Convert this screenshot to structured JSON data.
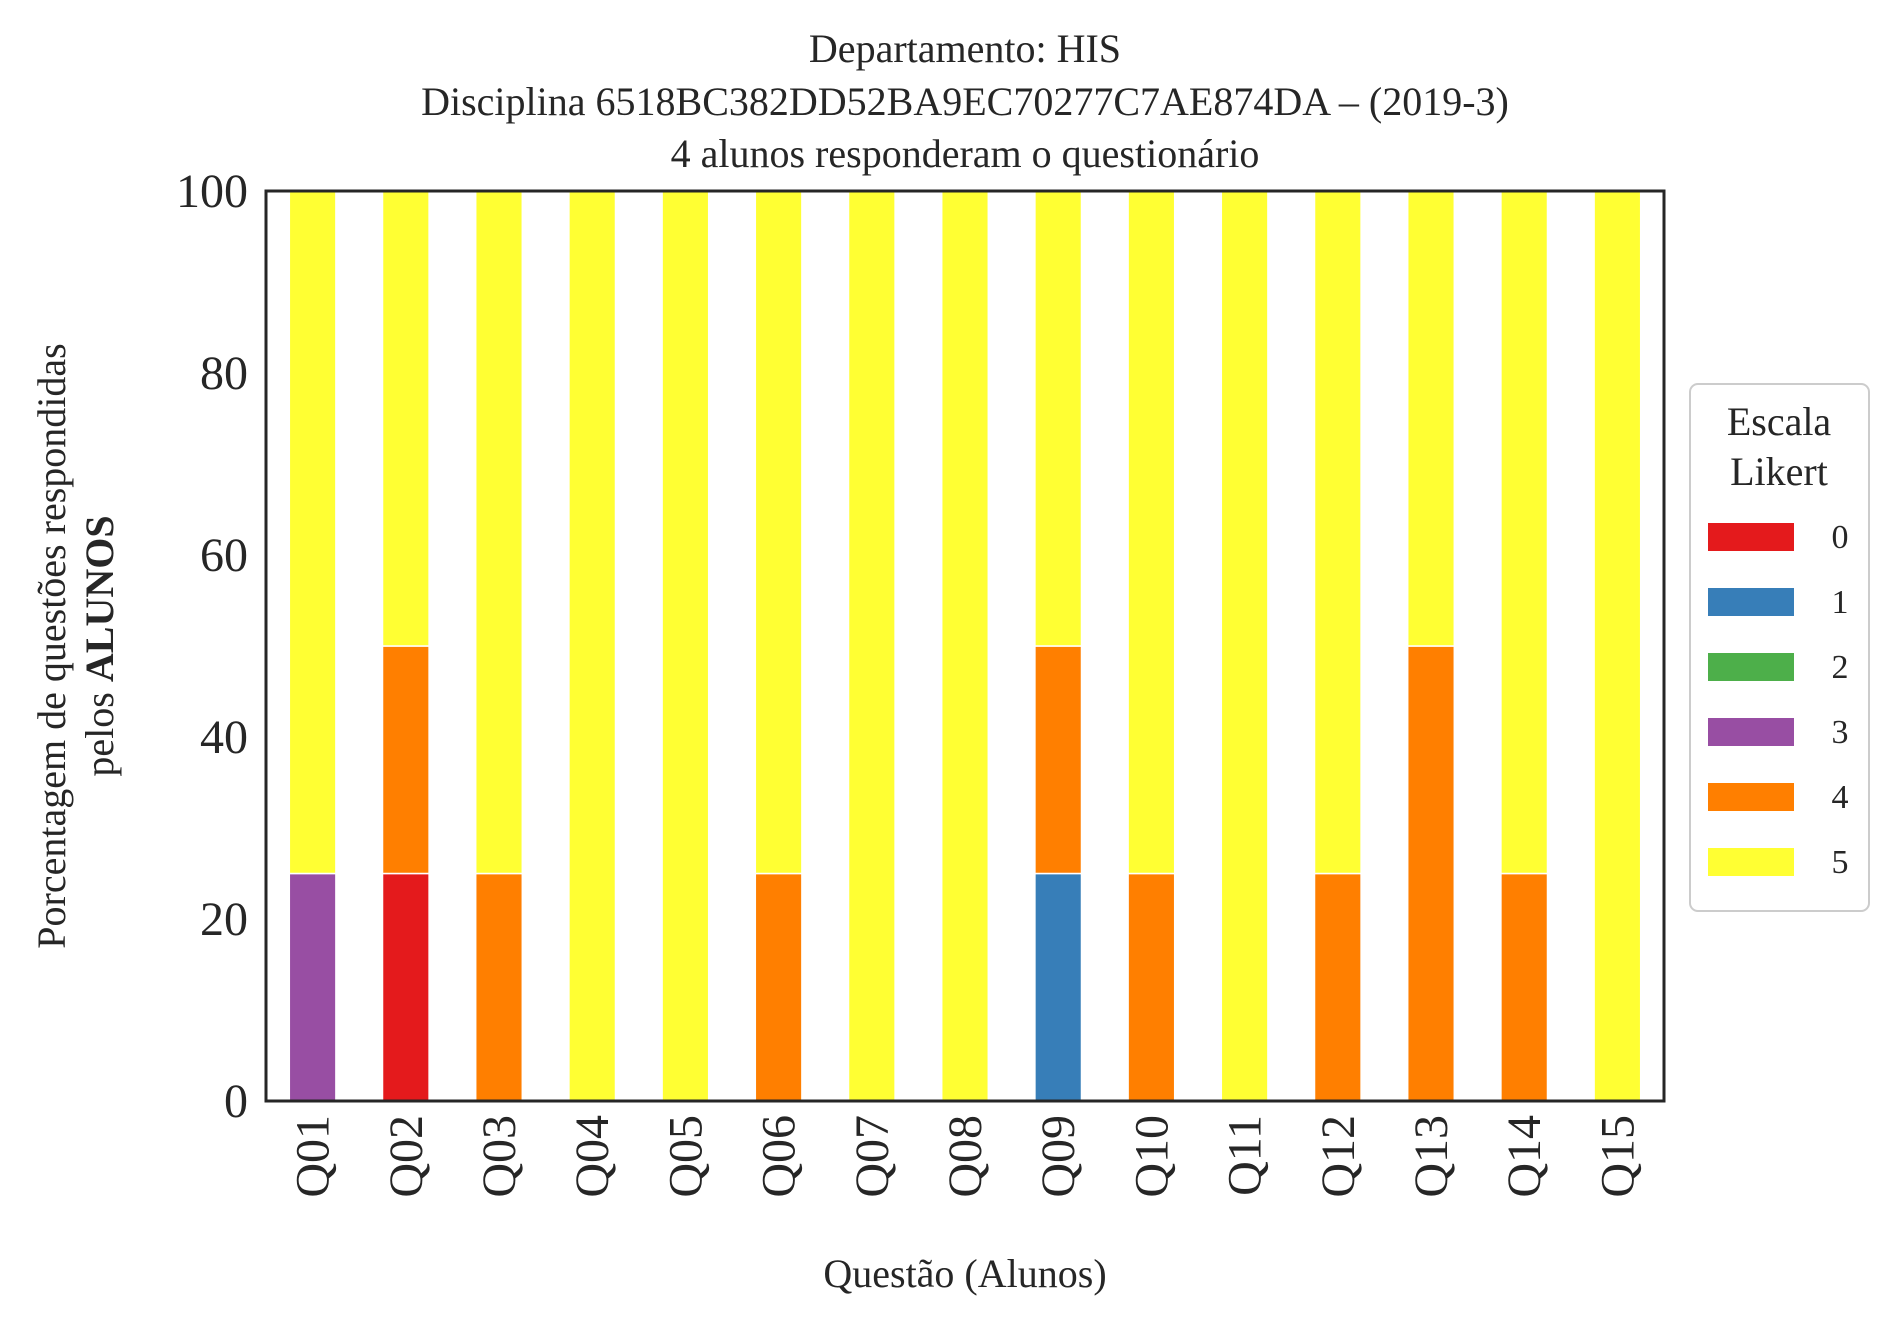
{
  "chart_data": {
    "type": "bar",
    "stacked": true,
    "title": "Departamento: HIS\nDisciplina 6518BC382DD52BA9EC70277C7AE874DA – (2019-3)\n4 alunos responderam o questionário",
    "title_lines": [
      "Departamento: HIS",
      "Disciplina 6518BC382DD52BA9EC70277C7AE874DA – (2019-3)",
      "4 alunos responderam o questionário"
    ],
    "xlabel": "Questão (Alunos)",
    "ylabel_line1": "Porcentagem de questões respondidas",
    "ylabel_line2_prefix": "pelos ",
    "ylabel_line2_bold": "ALUNOS",
    "ylim": [
      0,
      100
    ],
    "yticks": [
      "0",
      "20",
      "40",
      "60",
      "80",
      "100"
    ],
    "grid": false,
    "categories": [
      "Q01",
      "Q02",
      "Q03",
      "Q04",
      "Q05",
      "Q06",
      "Q07",
      "Q08",
      "Q09",
      "Q10",
      "Q11",
      "Q12",
      "Q13",
      "Q14",
      "Q15"
    ],
    "series": [
      {
        "name": "0",
        "color": "#e41a1c",
        "values": [
          0,
          25,
          0,
          0,
          0,
          0,
          0,
          0,
          0,
          0,
          0,
          0,
          0,
          0,
          0
        ]
      },
      {
        "name": "1",
        "color": "#377eb8",
        "values": [
          0,
          0,
          0,
          0,
          0,
          0,
          0,
          0,
          25,
          0,
          0,
          0,
          0,
          0,
          0
        ]
      },
      {
        "name": "2",
        "color": "#4daf4a",
        "values": [
          0,
          0,
          0,
          0,
          0,
          0,
          0,
          0,
          0,
          0,
          0,
          0,
          0,
          0,
          0
        ]
      },
      {
        "name": "3",
        "color": "#984ea3",
        "values": [
          25,
          0,
          0,
          0,
          0,
          0,
          0,
          0,
          0,
          0,
          0,
          0,
          0,
          0,
          0
        ]
      },
      {
        "name": "4",
        "color": "#ff7f00",
        "values": [
          0,
          25,
          25,
          0,
          0,
          25,
          0,
          0,
          25,
          25,
          0,
          25,
          50,
          25,
          0
        ]
      },
      {
        "name": "5",
        "color": "#ffff33",
        "values": [
          75,
          50,
          75,
          100,
          100,
          75,
          100,
          100,
          50,
          75,
          100,
          75,
          50,
          75,
          100
        ]
      }
    ],
    "legend": {
      "title_lines": [
        "Escala",
        "Likert"
      ],
      "placement": "right"
    }
  }
}
